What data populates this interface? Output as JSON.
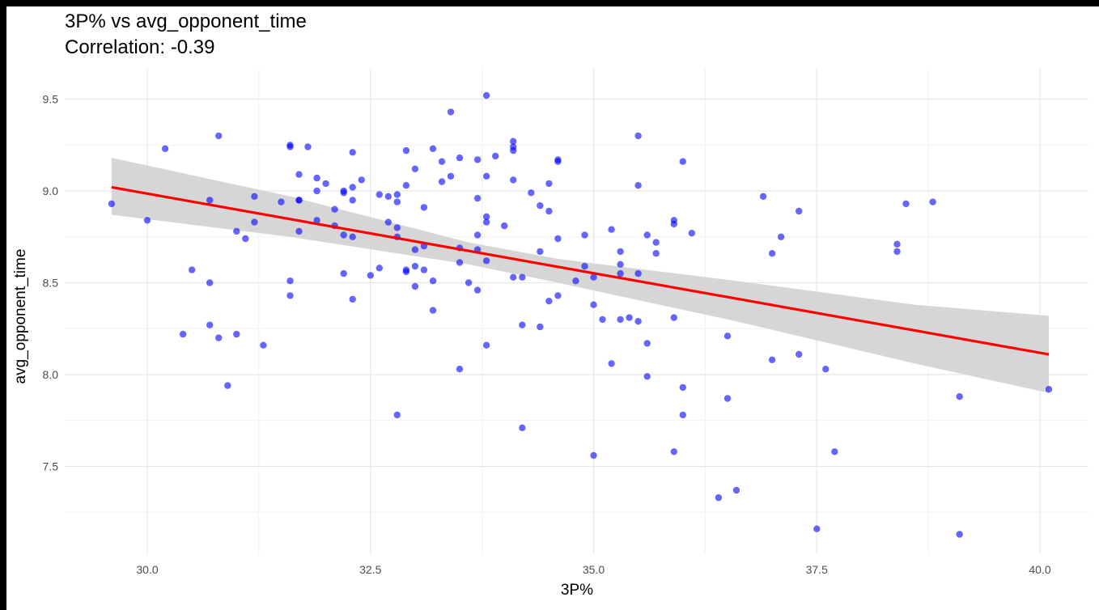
{
  "chart_data": {
    "type": "scatter",
    "title": "3P% vs avg_opponent_time",
    "subtitle": "Correlation: -0.39",
    "xlabel": "3P%",
    "ylabel": "avg_opponent_time",
    "xlim": [
      29.2,
      40.4
    ],
    "ylim": [
      7.02,
      9.65
    ],
    "x_ticks": [
      30.0,
      32.5,
      35.0,
      37.5,
      40.0
    ],
    "x_tick_labels": [
      "30.0",
      "32.5",
      "35.0",
      "37.5",
      "40.0"
    ],
    "y_ticks": [
      7.5,
      8.0,
      8.5,
      9.0,
      9.5
    ],
    "y_tick_labels": [
      "7.5",
      "8.0",
      "8.5",
      "9.0",
      "9.5"
    ],
    "grid": true,
    "point_color": "#0000ff",
    "line_color": "#ff0000",
    "band_color": "#d4d4d4",
    "points": [
      [
        29.6,
        8.93
      ],
      [
        30.0,
        8.84
      ],
      [
        30.2,
        9.23
      ],
      [
        30.4,
        8.22
      ],
      [
        30.5,
        8.57
      ],
      [
        30.7,
        8.95
      ],
      [
        30.7,
        8.5
      ],
      [
        30.7,
        8.27
      ],
      [
        30.8,
        9.3
      ],
      [
        30.8,
        8.2
      ],
      [
        30.9,
        7.94
      ],
      [
        31.0,
        8.78
      ],
      [
        31.0,
        8.22
      ],
      [
        31.1,
        8.74
      ],
      [
        31.2,
        8.97
      ],
      [
        31.2,
        8.83
      ],
      [
        31.3,
        8.16
      ],
      [
        31.5,
        8.94
      ],
      [
        31.6,
        9.25
      ],
      [
        31.6,
        9.24
      ],
      [
        31.6,
        8.51
      ],
      [
        31.6,
        8.43
      ],
      [
        31.7,
        9.09
      ],
      [
        31.7,
        8.95
      ],
      [
        31.7,
        8.95
      ],
      [
        31.7,
        8.78
      ],
      [
        31.8,
        9.24
      ],
      [
        31.9,
        9.07
      ],
      [
        31.9,
        9.0
      ],
      [
        31.9,
        8.84
      ],
      [
        32.0,
        9.04
      ],
      [
        32.1,
        8.9
      ],
      [
        32.1,
        8.81
      ],
      [
        32.2,
        9.0
      ],
      [
        32.2,
        8.99
      ],
      [
        32.2,
        8.76
      ],
      [
        32.2,
        8.55
      ],
      [
        32.3,
        9.21
      ],
      [
        32.3,
        9.02
      ],
      [
        32.3,
        8.95
      ],
      [
        32.3,
        8.75
      ],
      [
        32.3,
        8.41
      ],
      [
        32.4,
        9.06
      ],
      [
        32.5,
        8.54
      ],
      [
        32.6,
        8.98
      ],
      [
        32.6,
        8.58
      ],
      [
        32.7,
        8.97
      ],
      [
        32.7,
        8.83
      ],
      [
        32.8,
        8.98
      ],
      [
        32.8,
        8.94
      ],
      [
        32.8,
        8.8
      ],
      [
        32.8,
        8.75
      ],
      [
        32.8,
        7.78
      ],
      [
        32.9,
        9.22
      ],
      [
        32.9,
        9.03
      ],
      [
        32.9,
        8.57
      ],
      [
        32.9,
        8.56
      ],
      [
        33.0,
        9.12
      ],
      [
        33.0,
        8.68
      ],
      [
        33.0,
        8.59
      ],
      [
        33.0,
        8.48
      ],
      [
        33.1,
        8.91
      ],
      [
        33.1,
        8.7
      ],
      [
        33.1,
        8.57
      ],
      [
        33.2,
        9.23
      ],
      [
        33.2,
        8.51
      ],
      [
        33.2,
        8.35
      ],
      [
        33.3,
        9.16
      ],
      [
        33.3,
        9.05
      ],
      [
        33.4,
        9.43
      ],
      [
        33.4,
        9.08
      ],
      [
        33.5,
        9.18
      ],
      [
        33.5,
        8.69
      ],
      [
        33.5,
        8.61
      ],
      [
        33.5,
        8.03
      ],
      [
        33.6,
        8.5
      ],
      [
        33.7,
        9.17
      ],
      [
        33.7,
        8.96
      ],
      [
        33.7,
        8.76
      ],
      [
        33.7,
        8.68
      ],
      [
        33.7,
        8.46
      ],
      [
        33.8,
        9.52
      ],
      [
        33.8,
        9.08
      ],
      [
        33.8,
        8.86
      ],
      [
        33.8,
        8.83
      ],
      [
        33.8,
        8.62
      ],
      [
        33.8,
        8.16
      ],
      [
        33.9,
        9.19
      ],
      [
        34.0,
        8.81
      ],
      [
        34.1,
        9.27
      ],
      [
        34.1,
        9.24
      ],
      [
        34.1,
        9.22
      ],
      [
        34.1,
        9.06
      ],
      [
        34.1,
        8.53
      ],
      [
        34.2,
        8.53
      ],
      [
        34.2,
        8.27
      ],
      [
        34.2,
        7.71
      ],
      [
        34.3,
        8.99
      ],
      [
        34.4,
        8.92
      ],
      [
        34.4,
        8.67
      ],
      [
        34.4,
        8.26
      ],
      [
        34.5,
        9.04
      ],
      [
        34.5,
        8.89
      ],
      [
        34.5,
        8.4
      ],
      [
        34.6,
        9.17
      ],
      [
        34.6,
        9.16
      ],
      [
        34.6,
        8.74
      ],
      [
        34.6,
        8.43
      ],
      [
        34.8,
        8.51
      ],
      [
        34.9,
        8.76
      ],
      [
        34.9,
        8.59
      ],
      [
        35.0,
        8.53
      ],
      [
        35.0,
        8.38
      ],
      [
        35.0,
        7.56
      ],
      [
        35.1,
        8.3
      ],
      [
        35.2,
        8.79
      ],
      [
        35.2,
        8.06
      ],
      [
        35.3,
        8.67
      ],
      [
        35.3,
        8.6
      ],
      [
        35.3,
        8.55
      ],
      [
        35.3,
        8.3
      ],
      [
        35.4,
        8.31
      ],
      [
        35.5,
        9.3
      ],
      [
        35.5,
        9.03
      ],
      [
        35.5,
        8.55
      ],
      [
        35.5,
        8.29
      ],
      [
        35.6,
        8.76
      ],
      [
        35.6,
        8.17
      ],
      [
        35.6,
        7.99
      ],
      [
        35.7,
        8.72
      ],
      [
        35.7,
        8.66
      ],
      [
        35.9,
        8.84
      ],
      [
        35.9,
        8.82
      ],
      [
        35.9,
        8.31
      ],
      [
        35.9,
        7.58
      ],
      [
        36.0,
        9.16
      ],
      [
        36.0,
        7.93
      ],
      [
        36.0,
        7.78
      ],
      [
        36.1,
        8.77
      ],
      [
        36.4,
        7.33
      ],
      [
        36.5,
        8.21
      ],
      [
        36.5,
        7.87
      ],
      [
        36.6,
        7.37
      ],
      [
        36.9,
        8.97
      ],
      [
        37.0,
        8.66
      ],
      [
        37.0,
        8.08
      ],
      [
        37.1,
        8.75
      ],
      [
        37.3,
        8.89
      ],
      [
        37.3,
        8.11
      ],
      [
        37.5,
        7.16
      ],
      [
        37.6,
        8.03
      ],
      [
        37.7,
        7.58
      ],
      [
        38.4,
        8.71
      ],
      [
        38.4,
        8.67
      ],
      [
        38.5,
        8.93
      ],
      [
        38.8,
        8.94
      ],
      [
        39.1,
        7.88
      ],
      [
        39.1,
        7.13
      ],
      [
        40.1,
        7.92
      ]
    ],
    "regression": {
      "x": [
        29.6,
        40.1
      ],
      "y": [
        9.02,
        8.11
      ]
    },
    "confidence_band": {
      "x": [
        29.6,
        31.6,
        33.6,
        34.6,
        36.6,
        38.6,
        40.1
      ],
      "lower": [
        8.87,
        8.75,
        8.6,
        8.5,
        8.29,
        8.06,
        7.9
      ],
      "upper": [
        9.18,
        8.97,
        8.72,
        8.63,
        8.51,
        8.38,
        8.32
      ]
    }
  }
}
